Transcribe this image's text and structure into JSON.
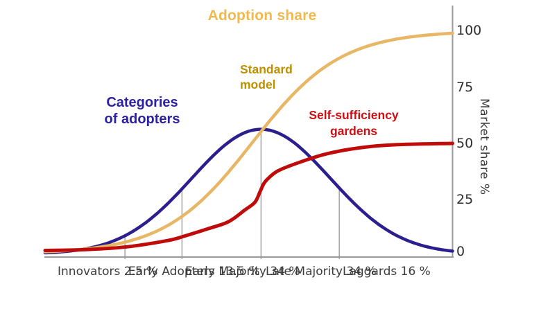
{
  "chart_data": {
    "type": "line",
    "title": "Adoption share",
    "xlabel": "",
    "ylabel": "Market share %",
    "ylim": [
      0,
      100
    ],
    "y_axis_position": "right",
    "grid": false,
    "legend_position": "inline-annotations",
    "y_ticks": [
      0,
      25,
      50,
      75,
      100
    ],
    "y_ticks_display": [
      "100",
      "75",
      "50",
      "25",
      "0"
    ],
    "categories": [
      {
        "label": "Innovators",
        "share": "2.5 %",
        "display": "Innovators\n2.5 %"
      },
      {
        "label": "Early Adopters",
        "share": "13.5 %",
        "display": "Early\nAdopters\n13.5 %"
      },
      {
        "label": "Early Majority",
        "share": "34 %",
        "display": "Early\nMajority\n34 %"
      },
      {
        "label": "Late Majority",
        "share": "34 %",
        "display": "Late\nMajority\n34 %"
      },
      {
        "label": "Laggards",
        "share": "16 %",
        "display": "Laggards\n16 %"
      }
    ],
    "category_boundaries": [
      0.196,
      0.336,
      0.53,
      0.722
    ],
    "series": [
      {
        "id": "categories-of-adopters",
        "name": "Categories of adopters",
        "kind": "bell",
        "color": "#2B1E8E",
        "width": 4.5,
        "params": {
          "center": 0.53,
          "sigma": 0.17,
          "amplitude": 55.5,
          "base": 0.5
        },
        "peak_value_pct": 56
      },
      {
        "id": "standard-model",
        "name": "Standard model",
        "kind": "logistic",
        "color": "#E7B766",
        "width": 4.5,
        "params": {
          "midpoint": 0.509,
          "scale": 0.108,
          "max": 99.3,
          "base": 0.5
        },
        "final_value_pct": 100
      },
      {
        "id": "self-sufficiency-gardens",
        "name": "Self-sufficiency gardens",
        "kind": "points",
        "color": "#C00B0B",
        "width": 5,
        "points": [
          [
            0,
            2.0
          ],
          [
            0.1,
            2.4
          ],
          [
            0.2,
            3.6
          ],
          [
            0.3,
            6.4
          ],
          [
            0.34,
            8.3
          ],
          [
            0.4,
            11.7
          ],
          [
            0.45,
            14.8
          ],
          [
            0.49,
            20.0
          ],
          [
            0.515,
            23.5
          ],
          [
            0.528,
            28.4
          ],
          [
            0.536,
            31.5
          ],
          [
            0.545,
            33.6
          ],
          [
            0.57,
            37.3
          ],
          [
            0.62,
            41.0
          ],
          [
            0.69,
            45.0
          ],
          [
            0.775,
            47.8
          ],
          [
            0.86,
            49.1
          ],
          [
            1.0,
            49.7
          ]
        ],
        "final_value_pct": 50
      }
    ],
    "annotations": {
      "title": "Adoption share",
      "categories_of_adopters": "Categories\nof adopters",
      "standard_model": "Standard\nmodel",
      "self_sufficiency_gardens": "Self-sufficiency\ngardens",
      "y_axis_title": "Market share %"
    },
    "colors": {
      "title_gold": "#EFB950",
      "standard_model_text": "#BF8F00",
      "adopters_text": "#2B21A5",
      "self_sufficiency_text": "#CE1014",
      "axis_gray": "#9A9A9A"
    }
  }
}
